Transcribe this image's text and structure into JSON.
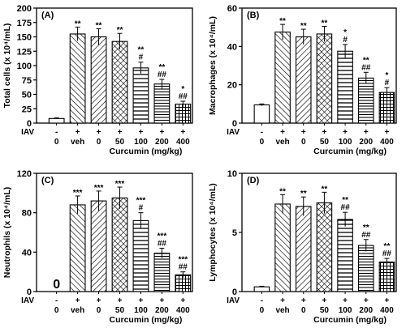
{
  "chart_data": [
    {
      "type": "bar",
      "panel_label": "(A)",
      "ylabel": "Total cells (x 10⁴/mL)",
      "ylim": [
        0,
        200
      ],
      "yticks": [
        "0",
        "25",
        "50",
        "75",
        "100",
        "125",
        "150",
        "175",
        "200"
      ],
      "categories": [
        "0",
        "veh",
        "0",
        "50",
        "100",
        "200",
        "400"
      ],
      "iav_row": [
        "-",
        "+",
        "+",
        "+",
        "+",
        "+",
        "+"
      ],
      "iav_label": "IAV",
      "xlabel": "Curcumin (mg/kg)",
      "values": [
        8,
        155,
        150,
        142,
        96,
        68,
        33
      ],
      "errors": [
        1,
        12,
        14,
        14,
        10,
        8,
        5
      ],
      "sig_top": [
        "",
        "**",
        "**",
        "**",
        "**",
        "**",
        "*"
      ],
      "sig_bottom": [
        "",
        "",
        "",
        "",
        "#",
        "##",
        "##"
      ],
      "legend": "none",
      "grid": false
    },
    {
      "type": "bar",
      "panel_label": "(B)",
      "ylabel": "Macrophages (x 10⁴/mL)",
      "ylim": [
        0,
        60
      ],
      "yticks": [
        "0",
        "20",
        "40",
        "60"
      ],
      "categories": [
        "0",
        "veh",
        "0",
        "50",
        "100",
        "200",
        "400"
      ],
      "iav_row": [
        "-",
        "+",
        "+",
        "+",
        "+",
        "+",
        "+"
      ],
      "iav_label": "IAV",
      "xlabel": "Curcumin (mg/kg)",
      "values": [
        9.5,
        47.5,
        45,
        46.5,
        37.5,
        23.5,
        16
      ],
      "errors": [
        0.5,
        4,
        4,
        4,
        3.5,
        3,
        2.5
      ],
      "sig_top": [
        "",
        "**",
        "**",
        "**",
        "*",
        "**",
        "*"
      ],
      "sig_bottom": [
        "",
        "",
        "",
        "",
        "#",
        "##",
        "#"
      ],
      "legend": "none",
      "grid": false
    },
    {
      "type": "bar",
      "panel_label": "(C)",
      "ylabel": "Neutrophils (x 10⁴/mL)",
      "ylim": [
        0,
        120
      ],
      "yticks": [
        "0",
        "40",
        "80",
        "120"
      ],
      "categories": [
        "0",
        "veh",
        "0",
        "50",
        "100",
        "200",
        "400"
      ],
      "iav_row": [
        "-",
        "+",
        "+",
        "+",
        "+",
        "+",
        "+"
      ],
      "iav_label": "IAV",
      "xlabel": "Curcumin (mg/kg)",
      "values": [
        0,
        88,
        92,
        95,
        72,
        39,
        17
      ],
      "errors": [
        0,
        9,
        10,
        11,
        8,
        5,
        3
      ],
      "zero_label": "0",
      "sig_top": [
        "",
        "***",
        "***",
        "***",
        "***",
        "***",
        "***"
      ],
      "sig_bottom": [
        "",
        "",
        "",
        "",
        "#",
        "##",
        "##"
      ],
      "legend": "none",
      "grid": false
    },
    {
      "type": "bar",
      "panel_label": "(D)",
      "ylabel": "Lymphocytes (x 10⁴/mL)",
      "ylim": [
        0,
        10
      ],
      "yticks": [
        "0",
        "5",
        "10"
      ],
      "categories": [
        "0",
        "veh",
        "0",
        "50",
        "100",
        "200",
        "400"
      ],
      "iav_row": [
        "-",
        "+",
        "+",
        "+",
        "+",
        "+",
        "+"
      ],
      "iav_label": "IAV",
      "xlabel": "Curcumin (mg/kg)",
      "values": [
        0.4,
        7.4,
        7.2,
        7.5,
        6.1,
        3.9,
        2.5
      ],
      "errors": [
        0.05,
        0.8,
        0.8,
        0.9,
        0.6,
        0.5,
        0.3
      ],
      "sig_top": [
        "",
        "**",
        "**",
        "**",
        "**",
        "**",
        "**"
      ],
      "sig_bottom": [
        "",
        "",
        "",
        "",
        "##",
        "##",
        "##"
      ],
      "legend": "none",
      "grid": false
    }
  ],
  "bar_patterns": [
    "plain",
    "diag-right",
    "diag-left",
    "crosshatch",
    "horizontal",
    "horizontal-dense",
    "grid"
  ],
  "colors": {
    "ink": "#000000",
    "bar_fill": "#ffffff"
  }
}
